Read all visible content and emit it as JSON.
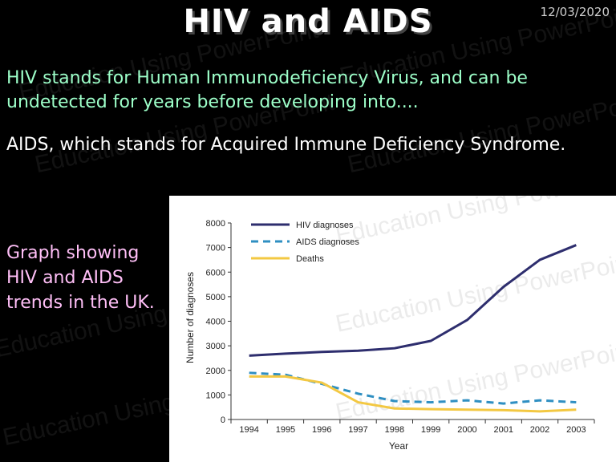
{
  "slide": {
    "title": "HIV and AIDS",
    "date": "12/03/2020",
    "paragraph1": "HIV stands for Human Immunodeficiency Virus, and can be undetected for years before developing into....",
    "paragraph2": "AIDS, which stands for Acquired Immune Deficiency Syndrome.",
    "caption": "Graph showing HIV and AIDS trends in the UK.",
    "watermark": "Education Using PowerPoint"
  },
  "chart_data": {
    "type": "line",
    "title": "",
    "xlabel": "Year",
    "ylabel": "Number of diagnoses",
    "x": [
      "1994",
      "1995",
      "1996",
      "1997",
      "1998",
      "1999",
      "2000",
      "2001",
      "2002",
      "2003"
    ],
    "ylim": [
      0,
      8000
    ],
    "yticks": [
      0,
      1000,
      2000,
      3000,
      4000,
      5000,
      6000,
      7000,
      8000
    ],
    "legend_position": "top-left",
    "series": [
      {
        "name": "HIV diagnoses",
        "color": "#2e2e6e",
        "dash": "solid",
        "values": [
          2600,
          2680,
          2750,
          2800,
          2900,
          3200,
          4050,
          5400,
          6500,
          7100
        ]
      },
      {
        "name": "AIDS diagnoses",
        "color": "#2f8fc2",
        "dash": "dashed",
        "values": [
          1900,
          1820,
          1450,
          1050,
          750,
          700,
          780,
          650,
          780,
          700
        ]
      },
      {
        "name": "Deaths",
        "color": "#f3c842",
        "dash": "solid",
        "values": [
          1750,
          1750,
          1500,
          700,
          450,
          420,
          400,
          380,
          330,
          400
        ]
      }
    ]
  }
}
